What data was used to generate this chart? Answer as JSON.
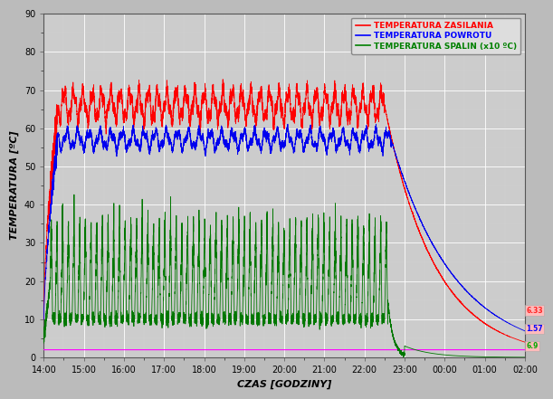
{
  "xlabel": "CZAS [GODZINY]",
  "ylabel": "TEMPERATURA [ºC]",
  "ylim": [
    0,
    90
  ],
  "yticks": [
    0,
    10,
    20,
    30,
    40,
    50,
    60,
    70,
    80,
    90
  ],
  "legend_labels": [
    "TEMPERATURA ZASILANIA",
    "TEMPERATURA POWROTU",
    "TEMPERATURA SPALIN (x10 ºC)"
  ],
  "legend_colors": [
    "#ff0000",
    "#0000ff",
    "#008000"
  ],
  "x_tick_labels": [
    "14:00",
    "15:00",
    "16:00",
    "17:00",
    "18:00",
    "19:00",
    "20:00",
    "21:00",
    "22:00",
    "23:00",
    "00:00",
    "01:00",
    "02:00"
  ],
  "end_vals": [
    [
      "6.33",
      "#ff2222",
      "#ffbbbb"
    ],
    [
      "1.57",
      "#0000ff",
      "#ffbbbb"
    ],
    [
      "6.9",
      "#00aa00",
      "#ffbbbb"
    ]
  ],
  "fig_bg": "#bbbbbb",
  "plot_bg": "#cccccc",
  "grid_color": "#ffffff",
  "total_minutes": 720
}
